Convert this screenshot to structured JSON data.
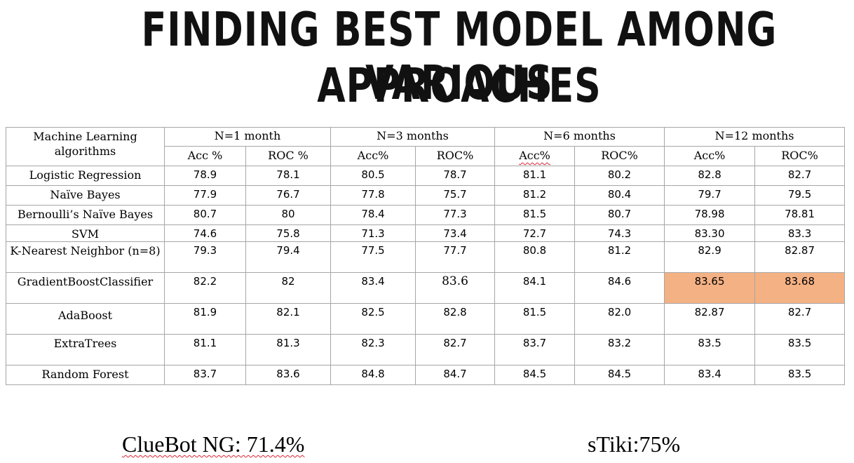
{
  "title": {
    "line1": "FINDING BEST MODEL AMONG VARIOUS",
    "line2": "APPROACHES"
  },
  "table": {
    "corner_header": "Machine Learning algorithms",
    "periods": [
      "N=1 month",
      "N=3 months",
      "N=6 months",
      "N=12 months"
    ],
    "sub_headers": [
      "Acc %",
      "ROC %",
      "Acc%",
      "ROC%",
      "Acc%",
      "ROC%",
      "Acc%",
      "ROC%"
    ],
    "rows": [
      {
        "algorithm": "Logistic Regression",
        "values": [
          "78.9",
          "78.1",
          "80.5",
          "78.7",
          "81.1",
          "80.2",
          "82.8",
          "82.7"
        ]
      },
      {
        "algorithm": "Naïve  Bayes",
        "values": [
          "77.9",
          "76.7",
          "77.8",
          "75.7",
          "81.2",
          "80.4",
          "79.7",
          "79.5"
        ]
      },
      {
        "algorithm": "Bernoulli’s Naïve Bayes",
        "values": [
          "80.7",
          "80",
          "78.4",
          "77.3",
          "81.5",
          "80.7",
          "78.98",
          "78.81"
        ]
      },
      {
        "algorithm": "SVM",
        "values": [
          "74.6",
          "75.8",
          "71.3",
          "73.4",
          "72.7",
          "74.3",
          "83.30",
          "83.3"
        ]
      },
      {
        "algorithm": "K-Nearest Neighbor (n=8)",
        "values": [
          "79.3",
          "79.4",
          "77.5",
          "77.7",
          "80.8",
          "81.2",
          "82.9",
          "82.87"
        ]
      },
      {
        "algorithm": "GradientBoostClassifier",
        "values": [
          "82.2",
          "82",
          "83.4",
          "83.6",
          "84.1",
          "84.6",
          "83.65",
          "83.68"
        ]
      },
      {
        "algorithm": "AdaBoost",
        "values": [
          "81.9",
          "82.1",
          "82.5",
          "82.8",
          "81.5",
          "82.0",
          "82.87",
          "82.7"
        ]
      },
      {
        "algorithm": "ExtraTrees",
        "values": [
          "81.1",
          "81.3",
          "82.3",
          "82.7",
          "83.7",
          "83.2",
          "83.5",
          "83.5"
        ]
      },
      {
        "algorithm": "Random Forest",
        "values": [
          "83.7",
          "83.6",
          "84.8",
          "84.7",
          "84.5",
          "84.5",
          "83.4",
          "83.5"
        ]
      }
    ],
    "highlight_color": "#f4b183"
  },
  "footer": {
    "cluebot": "ClueBot NG: 71.4%",
    "stiki": "sTiki:75%"
  }
}
